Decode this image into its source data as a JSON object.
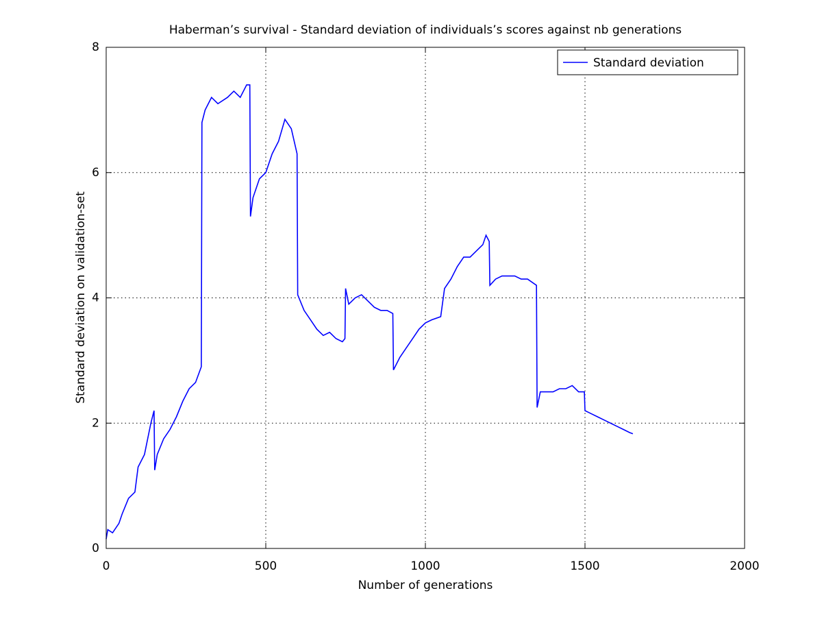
{
  "chart_data": {
    "type": "line",
    "title": "Haberman’s survival - Standard deviation of individuals’s scores against nb generations",
    "xlabel": "Number of generations",
    "ylabel": "Standard deviation on validation-set",
    "x": [
      0,
      5,
      20,
      40,
      50,
      70,
      90,
      100,
      120,
      140,
      150,
      152,
      160,
      180,
      200,
      220,
      240,
      260,
      280,
      298,
      300,
      310,
      330,
      350,
      380,
      400,
      420,
      440,
      450,
      452,
      460,
      480,
      500,
      520,
      540,
      560,
      580,
      598,
      600,
      620,
      640,
      660,
      680,
      700,
      720,
      740,
      748,
      750,
      760,
      780,
      800,
      820,
      840,
      860,
      880,
      898,
      900,
      920,
      940,
      960,
      980,
      1000,
      1020,
      1048,
      1060,
      1080,
      1100,
      1120,
      1140,
      1160,
      1180,
      1190,
      1200,
      1202,
      1220,
      1240,
      1260,
      1280,
      1300,
      1320,
      1348,
      1350,
      1360,
      1380,
      1400,
      1420,
      1440,
      1460,
      1480,
      1498,
      1500,
      1520,
      1540,
      1560,
      1580,
      1600,
      1620,
      1640,
      1650
    ],
    "series": [
      {
        "name": "Standard deviation",
        "color": "#0000ff",
        "values": [
          0.15,
          0.3,
          0.25,
          0.4,
          0.55,
          0.8,
          0.9,
          1.3,
          1.5,
          2.0,
          2.2,
          1.25,
          1.5,
          1.75,
          1.9,
          2.1,
          2.35,
          2.55,
          2.65,
          2.9,
          6.8,
          7.0,
          7.2,
          7.1,
          7.2,
          7.3,
          7.2,
          7.4,
          7.4,
          5.3,
          5.6,
          5.9,
          6.0,
          6.3,
          6.5,
          6.85,
          6.7,
          6.3,
          4.05,
          3.8,
          3.65,
          3.5,
          3.4,
          3.45,
          3.35,
          3.3,
          3.35,
          4.15,
          3.9,
          4.0,
          4.05,
          3.95,
          3.85,
          3.8,
          3.8,
          3.75,
          2.85,
          3.05,
          3.2,
          3.35,
          3.5,
          3.6,
          3.65,
          3.7,
          4.15,
          4.3,
          4.5,
          4.65,
          4.65,
          4.75,
          4.85,
          5.0,
          4.9,
          4.2,
          4.3,
          4.35,
          4.35,
          4.35,
          4.3,
          4.3,
          4.2,
          2.25,
          2.5,
          2.5,
          2.5,
          2.55,
          2.55,
          2.6,
          2.5,
          2.5,
          2.2,
          2.15,
          2.1,
          2.05,
          2.0,
          1.95,
          1.9,
          1.85,
          1.83
        ]
      }
    ],
    "xlim": [
      0,
      2000
    ],
    "xticks": [
      0,
      500,
      1000,
      1500,
      2000
    ],
    "ylim": [
      0,
      8
    ],
    "yticks": [
      0,
      2,
      4,
      6,
      8
    ],
    "grid": true,
    "legend": "northeast"
  }
}
